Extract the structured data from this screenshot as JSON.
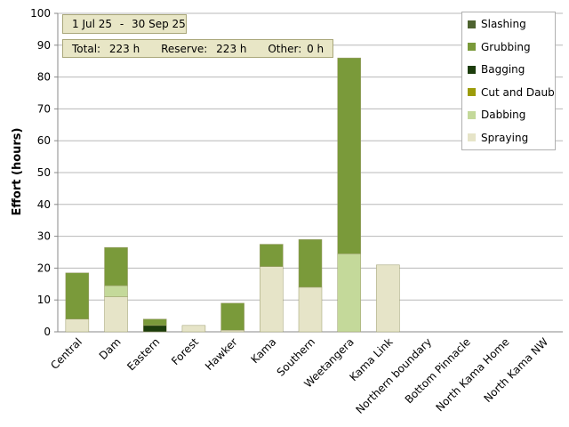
{
  "date_range": {
    "start": "1 Jul 25",
    "separator": "-",
    "end": "30 Sep 25"
  },
  "totals": {
    "total_label": "Total:",
    "total_value": "223 h",
    "reserve_label": "Reserve:",
    "reserve_value": "223 h",
    "other_label": "Other:",
    "other_value": "0 h"
  },
  "chart_data": {
    "type": "bar",
    "stacked": true,
    "ylabel": "Effort  (hours)",
    "ylim": [
      0,
      100
    ],
    "yticks": [
      0,
      10,
      20,
      30,
      40,
      50,
      60,
      70,
      80,
      90,
      100
    ],
    "grid": true,
    "legend_position": "top-right",
    "categories": [
      "Central",
      "Dam",
      "Eastern",
      "Forest",
      "Hawker",
      "Kama",
      "Southern",
      "Weetangera",
      "Kama Link",
      "Northern boundary",
      "Bottom Pinnacle",
      "North Kama Home",
      "North Kama NW"
    ],
    "series": [
      {
        "name": "Spraying",
        "color": "#e6e4c8",
        "values": [
          4,
          11,
          0,
          2,
          0.5,
          20.5,
          14,
          0,
          21,
          0,
          0,
          0,
          0
        ]
      },
      {
        "name": "Dabbing",
        "color": "#c4d99a",
        "values": [
          0,
          3.5,
          0,
          0,
          0,
          0,
          0,
          24.5,
          0,
          0,
          0,
          0,
          0
        ]
      },
      {
        "name": "Cut and Daub",
        "color": "#9c9c0a",
        "values": [
          0,
          0,
          0,
          0,
          0,
          0,
          0,
          0,
          0,
          0,
          0,
          0,
          0
        ]
      },
      {
        "name": "Bagging",
        "color": "#1c3d0c",
        "values": [
          0,
          0,
          2,
          0,
          0,
          0,
          0,
          0,
          0,
          0,
          0,
          0,
          0
        ]
      },
      {
        "name": "Grubbing",
        "color": "#7a9a3a",
        "values": [
          14.5,
          12,
          2,
          0,
          8.5,
          7,
          15,
          61.5,
          0,
          0,
          0,
          0,
          0
        ]
      },
      {
        "name": "Slashing",
        "color": "#4e6330",
        "values": [
          0,
          0,
          0,
          0,
          0,
          0,
          0,
          0,
          0,
          0,
          0,
          0,
          0
        ]
      }
    ],
    "legend_order": [
      "Slashing",
      "Grubbing",
      "Bagging",
      "Cut and Daub",
      "Dabbing",
      "Spraying"
    ]
  }
}
